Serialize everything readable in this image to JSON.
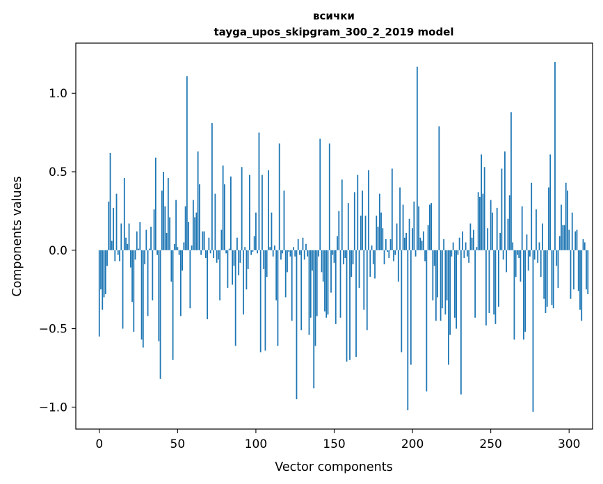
{
  "chart_data": {
    "type": "bar",
    "title_line1": "всички",
    "title_line2": "tayga_upos_skipgram_300_2_2019 model",
    "xlabel": "Vector components",
    "ylabel": "Components values",
    "xlim": [
      -15,
      315
    ],
    "ylim": [
      -1.14,
      1.32
    ],
    "xticks": [
      0,
      50,
      100,
      150,
      200,
      250,
      300
    ],
    "xtick_labels": [
      "0",
      "50",
      "100",
      "150",
      "200",
      "250",
      "300"
    ],
    "yticks": [
      -1.0,
      -0.5,
      0.0,
      0.5,
      1.0
    ],
    "ytick_labels": [
      "−1.0",
      "−0.5",
      "0.0",
      "0.5",
      "1.0"
    ],
    "bar_color": "#1f77b4",
    "values": [
      -0.55,
      -0.25,
      -0.38,
      -0.3,
      -0.28,
      -0.1,
      0.31,
      0.62,
      0.06,
      0.27,
      -0.07,
      0.36,
      -0.03,
      -0.07,
      0.17,
      -0.5,
      0.46,
      0.08,
      0.04,
      0.17,
      -0.11,
      -0.33,
      -0.52,
      -0.06,
      0.12,
      0.01,
      0.18,
      -0.57,
      -0.62,
      -0.09,
      0.13,
      -0.42,
      0.01,
      0.15,
      -0.32,
      0.26,
      0.59,
      -0.03,
      -0.58,
      -0.82,
      0.38,
      0.5,
      0.28,
      0.11,
      0.46,
      0.21,
      -0.2,
      -0.7,
      0.04,
      0.32,
      0.02,
      -0.03,
      -0.42,
      -0.13,
      0.05,
      0.28,
      1.11,
      0.18,
      -0.37,
      0.03,
      0.32,
      0.21,
      0.24,
      0.63,
      0.42,
      -0.03,
      0.12,
      0.12,
      -0.05,
      -0.44,
      0.08,
      -0.02,
      0.81,
      -0.05,
      0.36,
      -0.08,
      -0.06,
      -0.32,
      0.13,
      0.54,
      0.42,
      -0.02,
      -0.24,
      0.01,
      0.47,
      -0.22,
      -0.1,
      -0.61,
      0.08,
      -0.16,
      -0.08,
      0.53,
      -0.41,
      0.02,
      -0.25,
      -0.12,
      0.48,
      -0.03,
      -0.01,
      0.09,
      0.24,
      -0.02,
      0.75,
      -0.65,
      0.48,
      -0.12,
      -0.64,
      -0.17,
      0.51,
      0.02,
      0.24,
      -0.04,
      0.03,
      -0.32,
      -0.61,
      0.68,
      -0.06,
      -0.02,
      0.38,
      -0.3,
      -0.14,
      -0.01,
      -0.04,
      -0.45,
      0.02,
      -0.04,
      -0.95,
      0.07,
      -0.03,
      -0.51,
      0.08,
      -0.06,
      0.04,
      -0.04,
      -0.54,
      -0.43,
      -0.13,
      -0.88,
      -0.61,
      -0.42,
      -0.04,
      0.71,
      -0.14,
      -0.2,
      -0.39,
      -0.43,
      -0.41,
      0.68,
      -0.27,
      -0.03,
      -0.08,
      -0.47,
      0.09,
      0.25,
      -0.43,
      0.45,
      -0.09,
      -0.05,
      -0.71,
      0.3,
      -0.7,
      -0.17,
      -0.09,
      0.37,
      -0.68,
      0.48,
      -0.24,
      0.22,
      0.38,
      -0.38,
      0.22,
      -0.51,
      0.51,
      -0.17,
      0.03,
      -0.09,
      -0.18,
      0.22,
      0.15,
      0.36,
      0.24,
      0.14,
      -0.09,
      0.07,
      -0.01,
      -0.05,
      0.07,
      0.52,
      -0.07,
      -0.03,
      0.17,
      -0.2,
      0.4,
      -0.65,
      0.29,
      0.08,
      0.11,
      -1.02,
      0.2,
      -0.73,
      0.14,
      0.31,
      -0.04,
      1.17,
      0.28,
      0.08,
      0.06,
      0.12,
      -0.07,
      -0.9,
      0.16,
      0.29,
      0.3,
      -0.32,
      -0.1,
      -0.45,
      -0.3,
      0.79,
      -0.45,
      -0.37,
      0.07,
      -0.41,
      -0.32,
      -0.73,
      -0.54,
      -0.04,
      0.05,
      -0.43,
      -0.5,
      -0.03,
      0.08,
      -0.92,
      0.12,
      -0.05,
      0.05,
      -0.04,
      -0.08,
      0.17,
      0.08,
      0.13,
      -0.43,
      0.02,
      0.37,
      0.34,
      0.61,
      0.36,
      0.53,
      -0.48,
      0.14,
      -0.4,
      0.32,
      0.24,
      -0.41,
      -0.47,
      0.27,
      -0.36,
      0.11,
      0.52,
      -0.06,
      0.63,
      -0.14,
      0.2,
      0.35,
      0.88,
      0.05,
      -0.57,
      -0.17,
      -0.03,
      -0.05,
      -0.2,
      0.28,
      -0.57,
      -0.52,
      0.1,
      -0.13,
      -0.04,
      0.43,
      -1.03,
      -0.06,
      0.26,
      -0.08,
      0.05,
      -0.17,
      0.17,
      -0.31,
      -0.4,
      -0.36,
      0.4,
      0.61,
      -0.35,
      -0.37,
      1.2,
      -0.1,
      -0.24,
      0.09,
      0.29,
      0.16,
      0.16,
      0.43,
      0.38,
      0.13,
      -0.31,
      0.24,
      -0.25,
      0.12,
      0.13,
      -0.26,
      -0.38,
      -0.45,
      0.07,
      0.05,
      -0.25,
      -0.28
    ]
  }
}
